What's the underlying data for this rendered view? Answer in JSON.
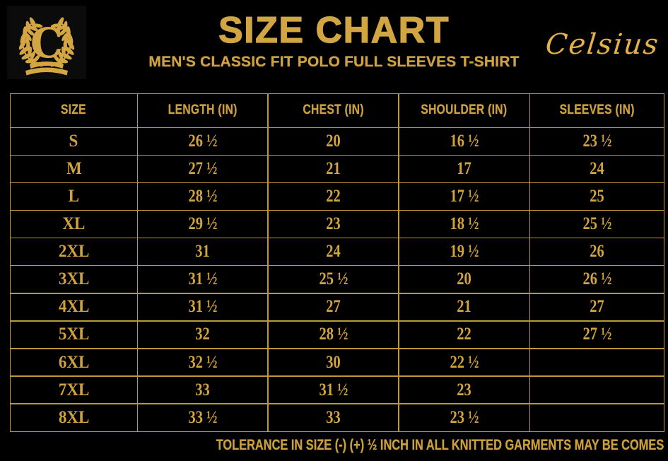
{
  "header": {
    "logo_letter": "C",
    "title": "SIZE CHART",
    "subtitle": "MEN'S CLASSIC FIT POLO FULL SLEEVES T-SHIRT",
    "brand_script": "Celsius"
  },
  "table": {
    "columns": [
      "SIZE",
      "LENGTH (IN)",
      "CHEST (IN)",
      "SHOULDER (IN)",
      "SLEEVES (IN)"
    ],
    "rows": [
      [
        "S",
        "26 ½",
        "20",
        "16 ½",
        "23 ½"
      ],
      [
        "M",
        "27 ½",
        "21",
        "17",
        "24"
      ],
      [
        "L",
        "28 ½",
        "22",
        "17 ½",
        "25"
      ],
      [
        "XL",
        "29 ½",
        "23",
        "18 ½",
        "25 ½"
      ],
      [
        "2XL",
        "31",
        "24",
        "19 ½",
        "26"
      ],
      [
        "3XL",
        "31 ½",
        "25 ½",
        "20",
        "26 ½"
      ],
      [
        "4XL",
        "31 ½",
        "27",
        "21",
        "27"
      ],
      [
        "5XL",
        "32",
        "28 ½",
        "22",
        "27 ½"
      ],
      [
        "6XL",
        "32 ½",
        "30",
        "22 ½",
        ""
      ],
      [
        "7XL",
        "33",
        "31 ½",
        "23",
        ""
      ],
      [
        "8XL",
        "33 ½",
        "33",
        "23 ½",
        ""
      ]
    ]
  },
  "footer": {
    "note": "TOLERANCE IN SIZE (-) (+)  ½ INCH IN ALL KNITTED GARMENTS MAY BE COMES"
  },
  "colors": {
    "background": "#000000",
    "gold_title": "#D2A543",
    "gold_text": "#D2A43E",
    "table_line": "#BD9839",
    "script_gold": "#E3B04A"
  }
}
